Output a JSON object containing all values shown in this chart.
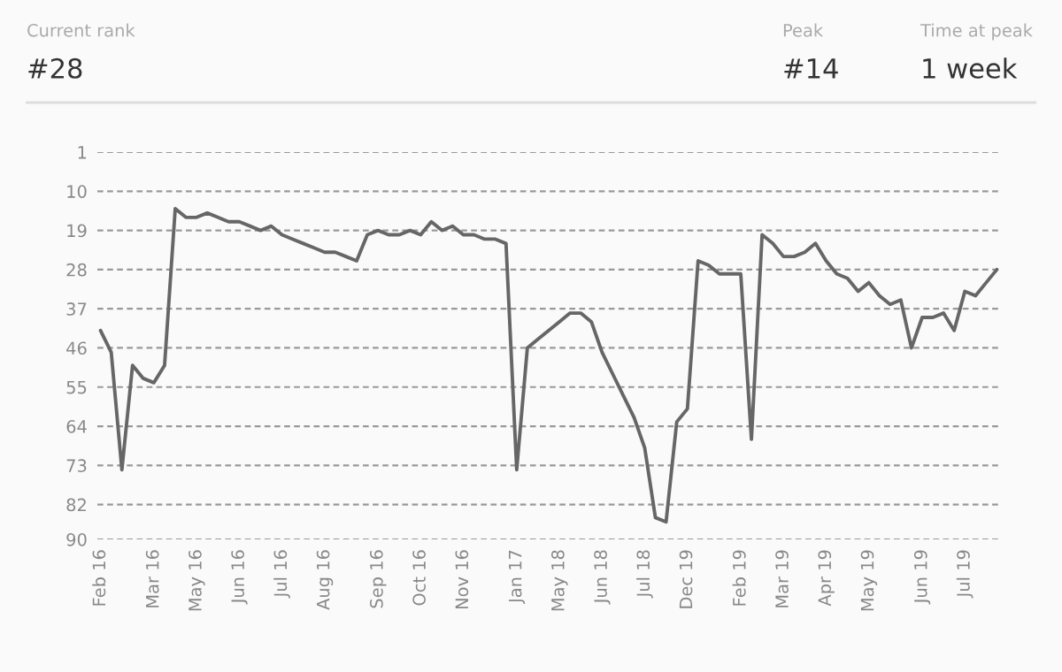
{
  "chart_data": {
    "type": "line",
    "annotations": [
      "Current rank",
      "#28",
      "Peak",
      "#14",
      "Time at peak",
      "1 week"
    ],
    "categories": [
      "Feb 16",
      null,
      null,
      null,
      null,
      "Mar 16",
      null,
      null,
      null,
      "May 16",
      null,
      null,
      null,
      "Jun 16",
      null,
      null,
      null,
      "Jul 16",
      null,
      null,
      null,
      "Aug 16",
      null,
      null,
      null,
      null,
      "Sep 16",
      null,
      null,
      null,
      "Oct 16",
      null,
      null,
      null,
      "Nov 16",
      null,
      null,
      null,
      null,
      "Jan 17",
      null,
      null,
      null,
      "May 18",
      null,
      null,
      null,
      "Jun 18",
      null,
      null,
      null,
      "Jul 18",
      null,
      null,
      null,
      "Dec 19",
      null,
      null,
      null,
      null,
      "Feb 19",
      null,
      null,
      null,
      "Mar 19",
      null,
      null,
      null,
      "Apr 19",
      null,
      null,
      null,
      "May 19",
      null,
      null,
      null,
      null,
      "Jun 19",
      null,
      null,
      null,
      "Jul 19",
      null,
      null,
      null
    ],
    "series": [
      {
        "color": "#666666",
        "values": [
          42,
          47,
          74,
          50,
          53,
          54,
          50,
          14,
          16,
          16,
          15,
          16,
          17,
          17,
          18,
          19,
          18,
          20,
          21,
          22,
          23,
          24,
          24,
          25,
          26,
          20,
          19,
          20,
          20,
          19,
          20,
          17,
          19,
          18,
          20,
          20,
          21,
          21,
          22,
          74,
          46,
          44,
          42,
          40,
          38,
          38,
          40,
          47,
          52,
          57,
          62,
          69,
          85,
          86,
          63,
          60,
          26,
          27,
          29,
          29,
          29,
          67,
          20,
          22,
          25,
          25,
          24,
          22,
          26,
          29,
          30,
          33,
          31,
          34,
          36,
          35,
          46,
          39,
          39,
          38,
          42,
          33,
          34,
          31,
          28
        ]
      }
    ],
    "ylim": [
      90,
      1
    ],
    "yticks": [
      1,
      10,
      19,
      28,
      37,
      46,
      55,
      64,
      73,
      82,
      90
    ],
    "grid": "y",
    "legend": false,
    "marker": "none",
    "line_style": "solid"
  }
}
